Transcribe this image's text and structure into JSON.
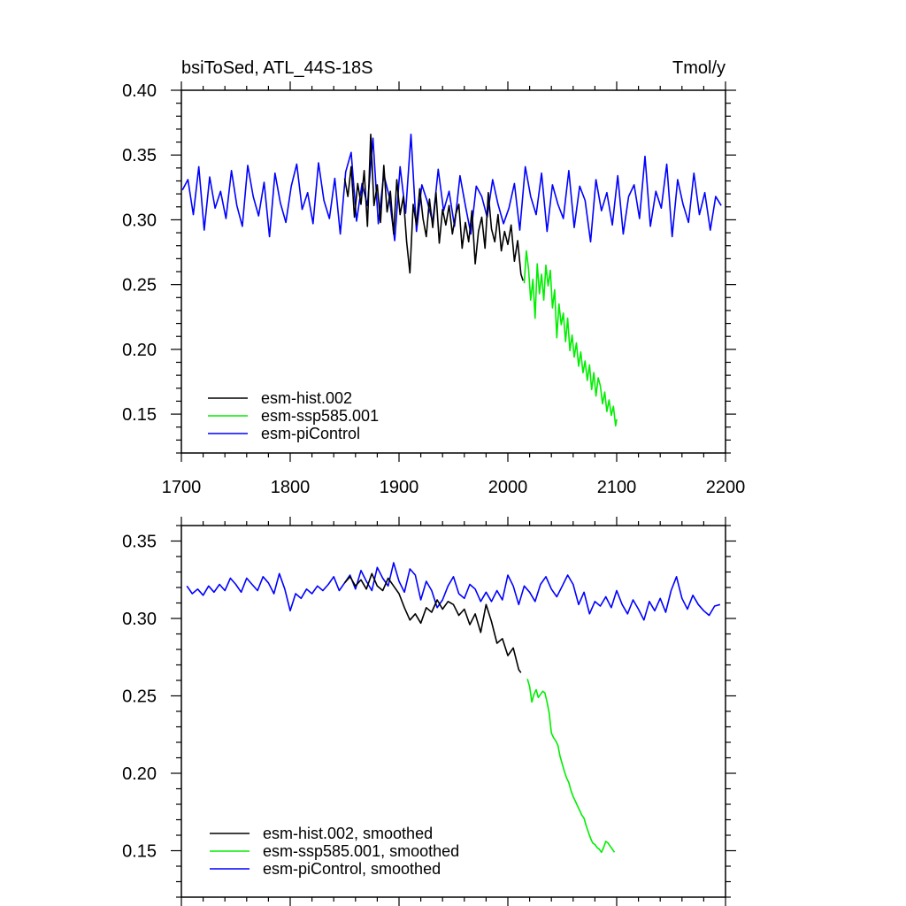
{
  "chart_data": [
    {
      "type": "line",
      "title": "bsiToSed, ATL_44S-18S",
      "units": "Tmol/y",
      "xlim": [
        1700,
        2200
      ],
      "ylim": [
        0.12,
        0.4
      ],
      "xticks": [
        1700,
        1800,
        1900,
        2000,
        2100,
        2200
      ],
      "xtick_labels": [
        "1700",
        "1800",
        "1900",
        "2000",
        "2100",
        "2200"
      ],
      "yticks": [
        0.15,
        0.2,
        0.25,
        0.3,
        0.35,
        0.4
      ],
      "ytick_labels": [
        "0.15",
        "0.20",
        "0.25",
        "0.30",
        "0.35",
        "0.40"
      ],
      "legend_position": "bottom-left",
      "series": [
        {
          "name": "esm-piControl",
          "color": "#0000ff",
          "x": [
            1701,
            1706,
            1711,
            1716,
            1721,
            1726,
            1731,
            1736,
            1741,
            1746,
            1751,
            1756,
            1761,
            1766,
            1771,
            1776,
            1781,
            1786,
            1791,
            1796,
            1801,
            1806,
            1811,
            1816,
            1821,
            1826,
            1831,
            1836,
            1841,
            1846,
            1851,
            1856,
            1861,
            1866,
            1871,
            1876,
            1881,
            1886,
            1891,
            1896,
            1901,
            1906,
            1911,
            1916,
            1921,
            1926,
            1931,
            1936,
            1941,
            1946,
            1951,
            1956,
            1961,
            1966,
            1971,
            1976,
            1981,
            1986,
            1991,
            1996,
            2001,
            2006,
            2011,
            2016,
            2021,
            2026,
            2031,
            2036,
            2041,
            2046,
            2051,
            2056,
            2061,
            2066,
            2071,
            2076,
            2081,
            2086,
            2091,
            2096,
            2101,
            2106,
            2111,
            2116,
            2121,
            2126,
            2131,
            2136,
            2141,
            2146,
            2151,
            2156,
            2161,
            2166,
            2171,
            2176,
            2181,
            2186,
            2191,
            2196
          ],
          "values": [
            0.323,
            0.331,
            0.304,
            0.341,
            0.292,
            0.333,
            0.309,
            0.322,
            0.301,
            0.338,
            0.311,
            0.295,
            0.342,
            0.318,
            0.303,
            0.329,
            0.287,
            0.336,
            0.313,
            0.298,
            0.326,
            0.343,
            0.308,
            0.321,
            0.297,
            0.344,
            0.315,
            0.301,
            0.332,
            0.289,
            0.337,
            0.352,
            0.299,
            0.328,
            0.311,
            0.363,
            0.297,
            0.335,
            0.318,
            0.284,
            0.341,
            0.305,
            0.366,
            0.291,
            0.327,
            0.314,
            0.298,
            0.339,
            0.307,
            0.322,
            0.295,
            0.334,
            0.311,
            0.289,
            0.326,
            0.318,
            0.302,
            0.331,
            0.312,
            0.297,
            0.309,
            0.328,
            0.292,
            0.341,
            0.318,
            0.304,
            0.336,
            0.291,
            0.327,
            0.312,
            0.301,
            0.338,
            0.294,
            0.326,
            0.315,
            0.283,
            0.331,
            0.307,
            0.321,
            0.296,
            0.334,
            0.289,
            0.318,
            0.327,
            0.301,
            0.349,
            0.295,
            0.322,
            0.309,
            0.343,
            0.287,
            0.331,
            0.312,
            0.298,
            0.336,
            0.304,
            0.321,
            0.292,
            0.318,
            0.311
          ]
        },
        {
          "name": "esm-hist.002",
          "color": "#000000",
          "x": [
            1850,
            1853,
            1856,
            1859,
            1862,
            1865,
            1868,
            1871,
            1874,
            1877,
            1880,
            1883,
            1886,
            1889,
            1892,
            1895,
            1898,
            1901,
            1904,
            1907,
            1910,
            1913,
            1916,
            1919,
            1922,
            1925,
            1928,
            1931,
            1934,
            1937,
            1940,
            1943,
            1946,
            1949,
            1952,
            1955,
            1958,
            1961,
            1964,
            1967,
            1970,
            1973,
            1976,
            1979,
            1982,
            1985,
            1988,
            1991,
            1994,
            1997,
            2000,
            2003,
            2006,
            2009,
            2012,
            2014
          ],
          "values": [
            0.332,
            0.318,
            0.341,
            0.302,
            0.328,
            0.312,
            0.338,
            0.295,
            0.366,
            0.311,
            0.327,
            0.298,
            0.342,
            0.306,
            0.322,
            0.289,
            0.331,
            0.304,
            0.318,
            0.283,
            0.259,
            0.312,
            0.296,
            0.324,
            0.301,
            0.287,
            0.316,
            0.294,
            0.321,
            0.282,
            0.308,
            0.296,
            0.311,
            0.289,
            0.304,
            0.312,
            0.278,
            0.298,
            0.283,
            0.307,
            0.266,
            0.291,
            0.302,
            0.278,
            0.321,
            0.293,
            0.283,
            0.304,
            0.276,
            0.291,
            0.281,
            0.296,
            0.268,
            0.284,
            0.258,
            0.253
          ]
        },
        {
          "name": "esm-ssp585.001",
          "color": "#00ee00",
          "x": [
            2015,
            2017,
            2019,
            2021,
            2023,
            2025,
            2027,
            2029,
            2031,
            2033,
            2035,
            2037,
            2039,
            2041,
            2043,
            2045,
            2047,
            2049,
            2051,
            2053,
            2055,
            2057,
            2059,
            2061,
            2063,
            2065,
            2067,
            2069,
            2071,
            2073,
            2075,
            2077,
            2079,
            2081,
            2083,
            2085,
            2087,
            2089,
            2091,
            2093,
            2095,
            2097,
            2099,
            2100
          ],
          "values": [
            0.251,
            0.276,
            0.262,
            0.238,
            0.254,
            0.224,
            0.266,
            0.243,
            0.258,
            0.238,
            0.265,
            0.249,
            0.261,
            0.232,
            0.246,
            0.209,
            0.235,
            0.219,
            0.228,
            0.206,
            0.224,
            0.199,
            0.211,
            0.194,
            0.205,
            0.187,
            0.198,
            0.182,
            0.191,
            0.176,
            0.188,
            0.169,
            0.182,
            0.164,
            0.178,
            0.172,
            0.158,
            0.167,
            0.152,
            0.161,
            0.149,
            0.156,
            0.141,
            0.146
          ]
        }
      ]
    },
    {
      "type": "line",
      "title": "",
      "units": "",
      "xlim": [
        1700,
        2200
      ],
      "ylim": [
        0.12,
        0.36
      ],
      "xticks": [
        1700,
        1800,
        1900,
        2000,
        2100,
        2200
      ],
      "yticks": [
        0.15,
        0.2,
        0.25,
        0.3,
        0.35
      ],
      "ytick_labels": [
        "0.15",
        "0.20",
        "0.25",
        "0.30",
        "0.35"
      ],
      "legend_position": "bottom-left",
      "series": [
        {
          "name": "esm-piControl, smoothed",
          "color": "#0000ff",
          "x": [
            1705,
            1710,
            1715,
            1720,
            1725,
            1730,
            1735,
            1740,
            1745,
            1750,
            1755,
            1760,
            1765,
            1770,
            1775,
            1780,
            1785,
            1790,
            1795,
            1800,
            1805,
            1810,
            1815,
            1820,
            1825,
            1830,
            1835,
            1840,
            1845,
            1850,
            1855,
            1860,
            1865,
            1870,
            1875,
            1880,
            1885,
            1890,
            1895,
            1900,
            1905,
            1910,
            1915,
            1920,
            1925,
            1930,
            1935,
            1940,
            1945,
            1950,
            1955,
            1960,
            1965,
            1970,
            1975,
            1980,
            1985,
            1990,
            1995,
            2000,
            2005,
            2010,
            2015,
            2020,
            2025,
            2030,
            2035,
            2040,
            2045,
            2050,
            2055,
            2060,
            2065,
            2070,
            2075,
            2080,
            2085,
            2090,
            2095,
            2100,
            2105,
            2110,
            2115,
            2120,
            2125,
            2130,
            2135,
            2140,
            2145,
            2150,
            2155,
            2160,
            2165,
            2170,
            2175,
            2180,
            2185,
            2190,
            2195
          ],
          "values": [
            0.321,
            0.316,
            0.319,
            0.315,
            0.321,
            0.317,
            0.322,
            0.318,
            0.326,
            0.322,
            0.317,
            0.326,
            0.322,
            0.318,
            0.327,
            0.323,
            0.316,
            0.329,
            0.319,
            0.305,
            0.316,
            0.313,
            0.319,
            0.316,
            0.321,
            0.318,
            0.322,
            0.327,
            0.318,
            0.323,
            0.328,
            0.319,
            0.331,
            0.324,
            0.318,
            0.333,
            0.326,
            0.321,
            0.336,
            0.324,
            0.317,
            0.332,
            0.328,
            0.312,
            0.324,
            0.318,
            0.307,
            0.312,
            0.321,
            0.327,
            0.316,
            0.313,
            0.322,
            0.319,
            0.311,
            0.317,
            0.311,
            0.318,
            0.312,
            0.328,
            0.321,
            0.309,
            0.321,
            0.317,
            0.311,
            0.322,
            0.327,
            0.319,
            0.314,
            0.321,
            0.328,
            0.322,
            0.309,
            0.317,
            0.303,
            0.311,
            0.308,
            0.314,
            0.307,
            0.318,
            0.309,
            0.303,
            0.312,
            0.306,
            0.299,
            0.311,
            0.305,
            0.313,
            0.304,
            0.318,
            0.327,
            0.313,
            0.306,
            0.315,
            0.309,
            0.305,
            0.302,
            0.308,
            0.309
          ]
        },
        {
          "name": "esm-hist.002, smoothed",
          "color": "#000000",
          "x": [
            1850,
            1855,
            1860,
            1865,
            1870,
            1875,
            1880,
            1885,
            1890,
            1895,
            1900,
            1905,
            1910,
            1915,
            1920,
            1925,
            1930,
            1935,
            1940,
            1945,
            1950,
            1955,
            1960,
            1965,
            1970,
            1975,
            1980,
            1985,
            1990,
            1995,
            2000,
            2005,
            2010,
            2012
          ],
          "values": [
            0.323,
            0.327,
            0.321,
            0.325,
            0.319,
            0.329,
            0.321,
            0.318,
            0.326,
            0.321,
            0.316,
            0.307,
            0.299,
            0.303,
            0.297,
            0.307,
            0.304,
            0.312,
            0.306,
            0.311,
            0.309,
            0.302,
            0.306,
            0.296,
            0.303,
            0.291,
            0.309,
            0.298,
            0.284,
            0.287,
            0.276,
            0.281,
            0.267,
            0.265
          ]
        },
        {
          "name": "esm-ssp585.001, smoothed",
          "color": "#00ee00",
          "x": [
            2018,
            2020,
            2022,
            2024,
            2026,
            2028,
            2030,
            2032,
            2034,
            2036,
            2038,
            2040,
            2042,
            2044,
            2046,
            2048,
            2050,
            2052,
            2054,
            2056,
            2058,
            2060,
            2062,
            2064,
            2066,
            2068,
            2070,
            2072,
            2074,
            2076,
            2078,
            2080,
            2082,
            2084,
            2086,
            2088,
            2090,
            2092,
            2094,
            2096,
            2098
          ],
          "values": [
            0.261,
            0.256,
            0.246,
            0.251,
            0.254,
            0.249,
            0.251,
            0.253,
            0.252,
            0.246,
            0.239,
            0.226,
            0.223,
            0.221,
            0.218,
            0.211,
            0.206,
            0.201,
            0.197,
            0.194,
            0.189,
            0.185,
            0.182,
            0.179,
            0.176,
            0.173,
            0.171,
            0.166,
            0.162,
            0.158,
            0.155,
            0.154,
            0.152,
            0.151,
            0.149,
            0.152,
            0.156,
            0.155,
            0.153,
            0.151,
            0.149
          ]
        }
      ]
    }
  ]
}
